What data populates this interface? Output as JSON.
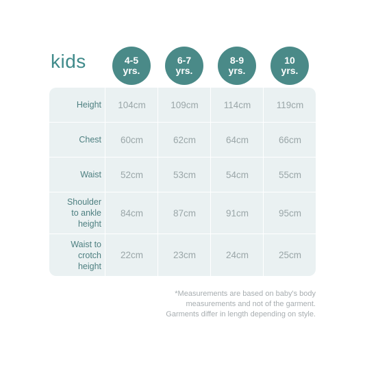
{
  "title": "kids",
  "sizes": [
    {
      "line1": "4-5",
      "line2": "yrs."
    },
    {
      "line1": "6-7",
      "line2": "yrs."
    },
    {
      "line1": "8-9",
      "line2": "yrs."
    },
    {
      "line1": "10",
      "line2": "yrs."
    }
  ],
  "rows": [
    {
      "label": "Height",
      "values": [
        "104cm",
        "109cm",
        "114cm",
        "119cm"
      ]
    },
    {
      "label": "Chest",
      "values": [
        "60cm",
        "62cm",
        "64cm",
        "66cm"
      ]
    },
    {
      "label": "Waist",
      "values": [
        "52cm",
        "53cm",
        "54cm",
        "55cm"
      ]
    },
    {
      "label_lines": [
        "Shoulder",
        "to ankle",
        "height"
      ],
      "values": [
        "84cm",
        "87cm",
        "91cm",
        "95cm"
      ]
    },
    {
      "label_lines": [
        "Waist to",
        "crotch",
        "height"
      ],
      "values": [
        "22cm",
        "23cm",
        "24cm",
        "25cm"
      ]
    }
  ],
  "note": [
    "*Measurements are based on baby's body",
    "measurements and not of the garment.",
    "Garments differ in length depending on style."
  ],
  "colors": {
    "accent": "#4a8a88",
    "table_bg": "#eaf1f2",
    "label": "#4d7f80"
  }
}
